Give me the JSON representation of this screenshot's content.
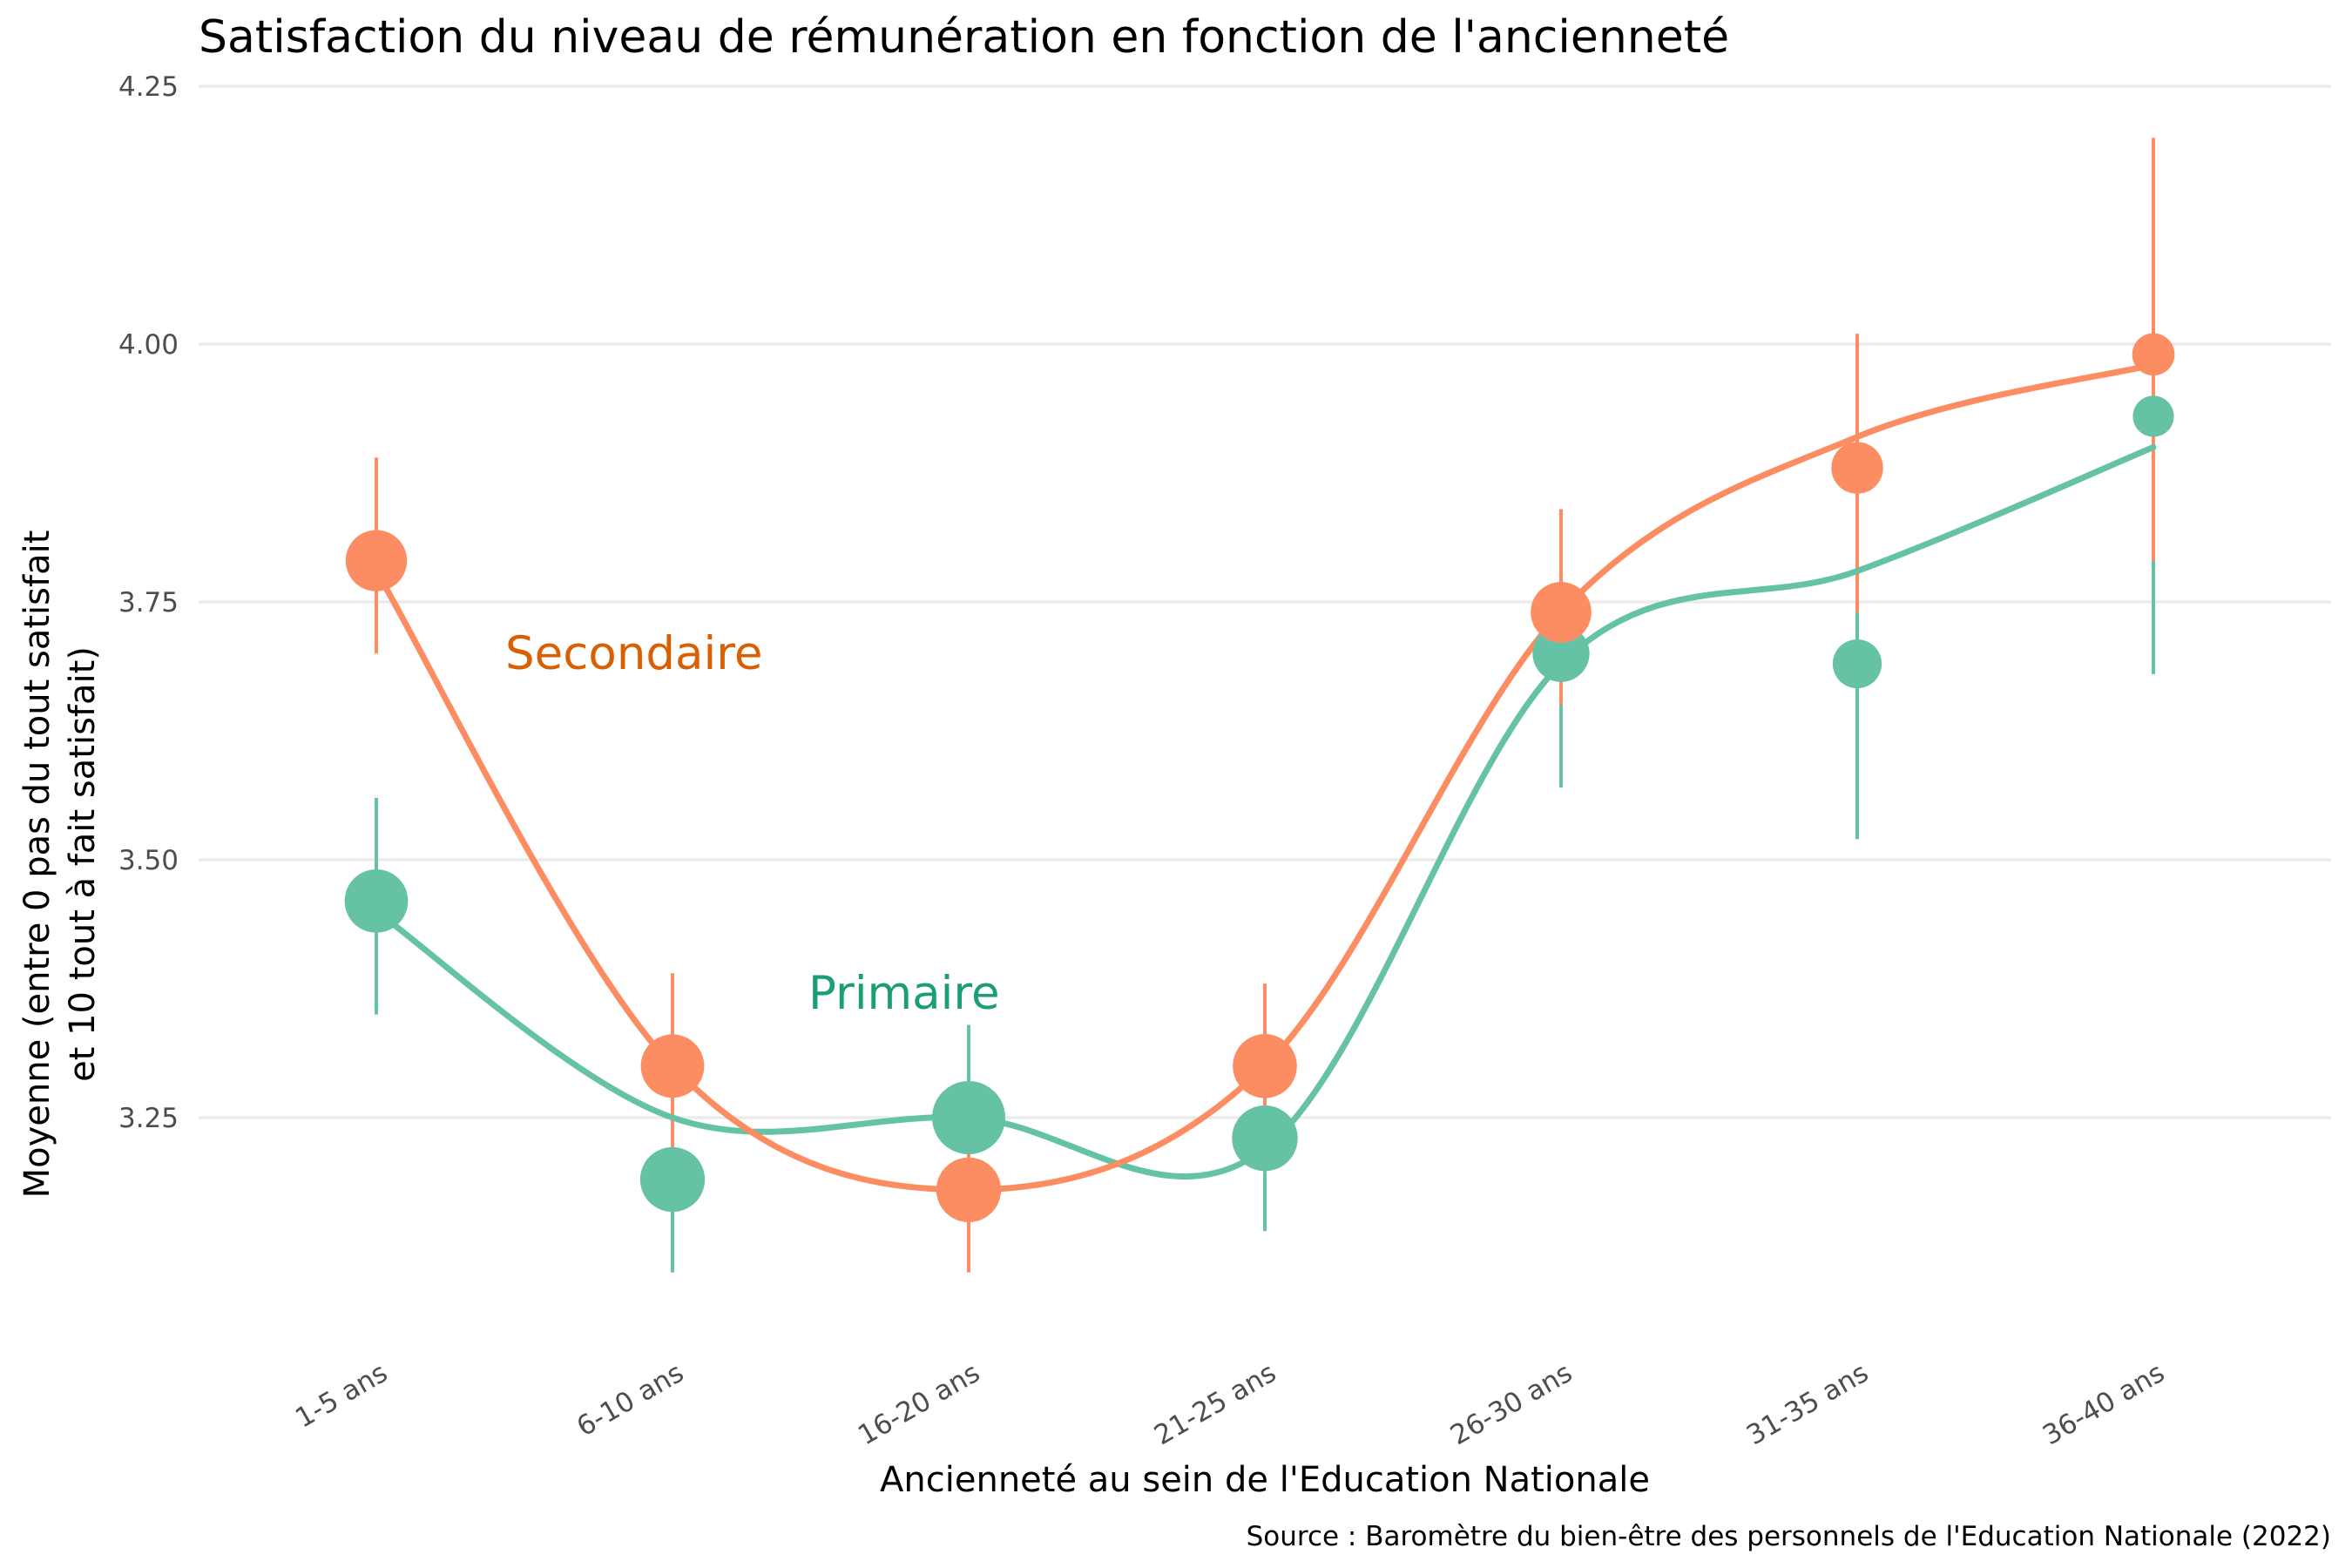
{
  "chart_data": {
    "type": "scatter",
    "title": "Satisfaction du niveau de rémunération en fonction de l'ancienneté",
    "xlabel": "Ancienneté au sein de l'Education Nationale",
    "ylabel_line1": "Moyenne (entre 0 pas du tout satisfait",
    "ylabel_line2": "et 10 tout à fait satisfait)",
    "caption": "Source : Baromètre du bien-être des personnels de l'Education Nationale (2022)",
    "categories": [
      "1-5 ans",
      "6-10 ans",
      "16-20 ans",
      "21-25 ans",
      "26-30 ans",
      "31-35 ans",
      "36-40 ans"
    ],
    "y_ticks": [
      {
        "value": 3.25,
        "label": "3.25"
      },
      {
        "value": 3.5,
        "label": "3.50"
      },
      {
        "value": 3.75,
        "label": "3.75"
      },
      {
        "value": 4.0,
        "label": "4.00"
      },
      {
        "value": 4.25,
        "label": "4.25"
      }
    ],
    "ylim": [
      3.025,
      4.25
    ],
    "grid": true,
    "legend": "none (series labelled directly on the plot)",
    "series": [
      {
        "name": "Secondaire",
        "color": "#FC8D62",
        "label_color": "#D95F02",
        "means": [
          3.79,
          3.3,
          3.18,
          3.3,
          3.74,
          3.88,
          3.99
        ],
        "ci_low": [
          3.7,
          3.22,
          3.1,
          3.22,
          3.65,
          3.74,
          3.79
        ],
        "ci_high": [
          3.89,
          3.39,
          3.26,
          3.38,
          3.84,
          4.01,
          4.2
        ],
        "relative_size": [
          0.62,
          0.68,
          0.72,
          0.7,
          0.6,
          0.38,
          0.2
        ],
        "smooth": [
          3.78,
          3.3,
          3.18,
          3.3,
          3.74,
          3.91,
          3.98
        ]
      },
      {
        "name": "Primaire",
        "color": "#66C2A5",
        "label_color": "#1B9E77",
        "means": [
          3.46,
          3.19,
          3.25,
          3.23,
          3.7,
          3.69,
          3.93
        ],
        "ci_low": [
          3.35,
          3.1,
          3.17,
          3.14,
          3.57,
          3.52,
          3.68
        ],
        "ci_high": [
          3.56,
          3.29,
          3.34,
          3.32,
          3.82,
          3.86,
          4.18
        ],
        "relative_size": [
          0.68,
          0.72,
          1.0,
          0.75,
          0.5,
          0.32,
          0.18
        ],
        "smooth": [
          3.45,
          3.25,
          3.25,
          3.22,
          3.69,
          3.78,
          3.9
        ]
      }
    ]
  }
}
